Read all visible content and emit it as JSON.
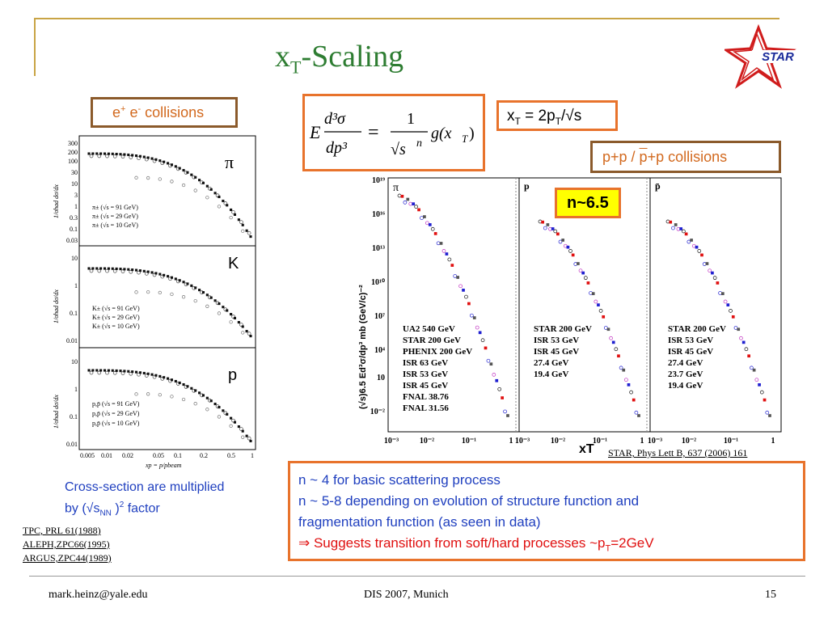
{
  "slide": {
    "title_main": "x",
    "title_sub": "T",
    "title_rest": "-Scaling",
    "logo_text": "STAR"
  },
  "ee_box": {
    "label_pre": "e",
    "sup_plus": "+",
    "label_mid": " e",
    "sup_minus": "-",
    "label_post": " collisions"
  },
  "formula": {
    "E": "E",
    "num": "d³σ",
    "den": "dp³",
    "eq": "=",
    "one": "1",
    "sqrt_s": "√s",
    "n": "n",
    "g": "g(x",
    "gsub": "T",
    "gclose": ")"
  },
  "xt_box": {
    "text": "x",
    "sub": "T",
    "rest1": " = 2p",
    "sub2": "T",
    "rest2": "/√s"
  },
  "pp_box": {
    "text_a": "p+p / ",
    "text_b": "p",
    "text_c": "+p collisions"
  },
  "n_badge": {
    "text": "n~6.5"
  },
  "left_plot": {
    "panels": [
      {
        "particle": "π",
        "legend": [
          "π± (√s = 91 GeV)",
          "π± (√s = 29 GeV)",
          "π± (√s = 10 GeV)"
        ],
        "yticks": [
          "300",
          "200",
          "100",
          "30",
          "10",
          "3",
          "1",
          "0.3",
          "0.1",
          "0.03"
        ]
      },
      {
        "particle": "K",
        "legend": [
          "K± (√s = 91 GeV)",
          "K± (√s = 29 GeV)",
          "K± (√s = 10 GeV)"
        ],
        "yticks": [
          "10",
          "1",
          "0.1",
          "0.01"
        ]
      },
      {
        "particle": "p",
        "legend": [
          "p,p̄ (√s = 91 GeV)",
          "p,p̄ (√s = 29 GeV)",
          "p,p̄ (√s = 10 GeV)"
        ],
        "yticks": [
          "10",
          "1",
          "0.1",
          "0.01"
        ]
      }
    ],
    "ylabel": "1/σhad dσ/dx",
    "xticks": [
      "0.005",
      "0.01",
      "0.02",
      "0.05",
      "0.1",
      "0.2",
      "0.5",
      "1"
    ],
    "xlabel": "xp = p/pbeam"
  },
  "right_plot": {
    "ylabel": "(√s)6.5 Ed³σ/dp³ mb (GeV/c)⁻²",
    "yticks": [
      "10¹⁹",
      "10¹⁶",
      "10¹³",
      "10¹⁰",
      "10⁷",
      "10⁴",
      "10",
      "10⁻²"
    ],
    "xticks": [
      "10⁻³",
      "10⁻²",
      "10⁻¹",
      "1"
    ],
    "xlabel": "xT",
    "panels": [
      {
        "particle": "π",
        "legend": [
          "UA2 540 GeV",
          "STAR 200 GeV",
          "PHENIX 200 GeV",
          "ISR 63 GeV",
          "ISR 53 GeV",
          "ISR 45 GeV",
          "FNAL 38.76",
          "FNAL 31.56"
        ]
      },
      {
        "particle": "p",
        "legend": [
          "STAR 200 GeV",
          "ISR 53 GeV",
          "ISR 45 GeV",
          "27.4 GeV",
          "19.4 GeV"
        ]
      },
      {
        "particle": "p̄",
        "legend": [
          "STAR 200 GeV",
          "ISR 53 GeV",
          "ISR 45 GeV",
          "27.4 GeV",
          "23.7 GeV",
          "19.4 GeV"
        ]
      }
    ]
  },
  "star_ref": "STAR, Phys Lett B, 637 (2006) 161",
  "cross_section_note": {
    "line1": "Cross-section are multiplied",
    "line2a": "by (√s",
    "line2sub": "NN",
    "line2b": " )",
    "line2sup": "2",
    "line2c": " factor"
  },
  "refs": [
    "TPC, PRL 61(1988)",
    "ALEPH,ZPC66(1995)",
    "ARGUS,ZPC44(1989)"
  ],
  "bottom_box": {
    "line1": "n ~ 4 for basic scattering process",
    "line2": "n ~ 5-8 depending on evolution of structure function and",
    "line3": "fragmentation function (as seen in data)",
    "line4a": "⇒ Suggests transition from soft/hard processes ~p",
    "line4sub": "T",
    "line4b": "=2GeV"
  },
  "footer": {
    "email": "mark.heinz@yale.edu",
    "conf": "DIS 2007, Munich",
    "page": "15"
  },
  "colors": {
    "title": "#2e7d32",
    "brown_border": "#8b5a2b",
    "orange_border": "#e8732c",
    "badge": "#ffff00",
    "blue_text": "#1f3fbf",
    "red_text": "#e01010"
  }
}
